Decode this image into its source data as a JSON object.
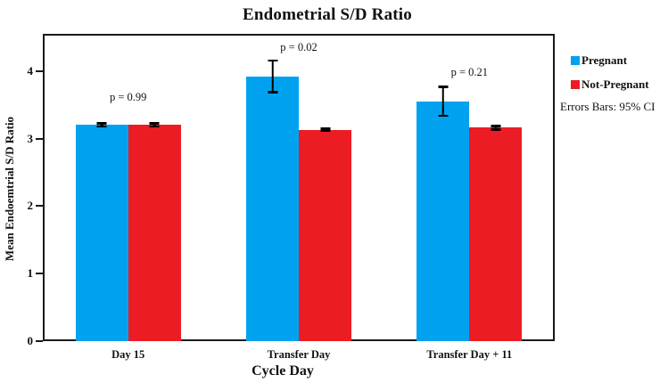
{
  "chart_data": {
    "type": "bar",
    "title": "Endometrial S/D Ratio",
    "xlabel": "Cycle Day",
    "ylabel": "Mean Endoemtrial S/D Ratio",
    "categories": [
      "Day 15",
      "Transfer Day",
      "Transfer Day + 11"
    ],
    "series": [
      {
        "name": "Pregnant",
        "color": "#00A2F0",
        "values": [
          3.2,
          3.92,
          3.55
        ],
        "errors": [
          0.04,
          0.25,
          0.23
        ]
      },
      {
        "name": "Not-Pregnant",
        "color": "#EC1C24",
        "values": [
          3.2,
          3.13,
          3.16
        ],
        "errors": [
          0.04,
          0.03,
          0.04
        ]
      }
    ],
    "p_values": [
      "p = 0.99",
      "p = 0.02",
      "p = 0.21"
    ],
    "y_ticks": [
      0,
      1,
      2,
      3,
      4
    ],
    "ylim": [
      0,
      4.55
    ],
    "grid": false,
    "legend_position": "right",
    "error_note": "Errors Bars: 95% CI",
    "bar_edge_color": "none",
    "error_bar_color": "#000000"
  }
}
